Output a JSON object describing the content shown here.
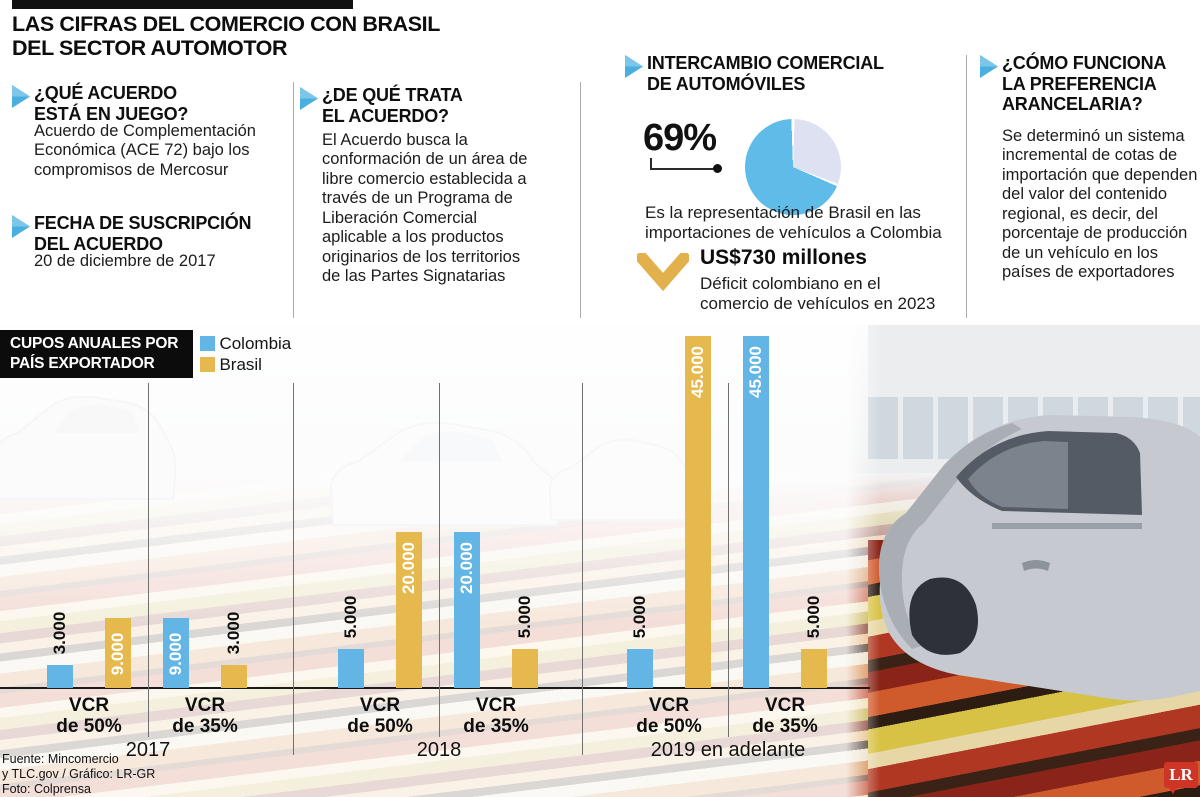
{
  "masthead": {
    "title": "LAS CIFRAS DEL COMERCIO CON BRASIL\nDEL SECTOR AUTOMOTOR"
  },
  "columns": {
    "col1": {
      "q1_heading": "¿QUÉ ACUERDO\nESTÁ EN JUEGO?",
      "q1_body": "Acuerdo de Complementación Económica (ACE 72) bajo los compromisos de Mercosur",
      "q2_heading": "FECHA DE SUSCRIPCIÓN\nDEL ACUERDO",
      "q2_body": "20 de diciembre de 2017"
    },
    "col2": {
      "heading": "¿DE QUÉ TRATA\nEL ACUERDO?",
      "body": "El Acuerdo busca la conformación de un área de libre comercio establecida a través de un Programa de Liberación Comercial aplicable a los productos originarios de los territorios de las Partes Signatarias"
    },
    "col3": {
      "heading": "INTERCAMBIO COMERCIAL\nDE AUTOMÓVILES",
      "pie_value": "69%",
      "pie_caption": "Es la representación de Brasil en las importaciones de vehículos a Colombia",
      "deficit_value": "US$730 millones",
      "deficit_caption": "Déficit colombiano en el comercio de vehículos en 2023"
    },
    "col4": {
      "heading": "¿CÓMO FUNCIONA\nLA PREFERENCIA\nARANCELARIA?",
      "body": "Se determinó un sistema incremental de cotas de importación que dependen del valor del contenido regional, es decir, del porcentaje de producción de un vehículo en los países de exportadores"
    }
  },
  "chart": {
    "header": "CUPOS ANUALES POR\nPAÍS EXPORTADOR",
    "legend": [
      {
        "label": "Colombia",
        "color": "#62b5e5"
      },
      {
        "label": "Brasil",
        "color": "#e5b94e"
      }
    ]
  },
  "chart_data": [
    {
      "type": "bar",
      "title": "Cupos anuales por país exportador",
      "series_names": [
        "Colombia",
        "Brasil"
      ],
      "ylim": [
        0,
        45000
      ],
      "legend_position": "top-left",
      "grid": false,
      "groups": [
        {
          "year": "2017",
          "bars": [
            {
              "series": "Colombia",
              "category": "VCR de 50%",
              "value": 3000,
              "label": "3.000"
            },
            {
              "series": "Brasil",
              "category": "VCR de 50%",
              "value": 9000,
              "label": "9.000"
            },
            {
              "series": "Colombia",
              "category": "VCR de 35%",
              "value": 9000,
              "label": "9.000"
            },
            {
              "series": "Brasil",
              "category": "VCR de 35%",
              "value": 3000,
              "label": "3.000"
            }
          ]
        },
        {
          "year": "2018",
          "bars": [
            {
              "series": "Colombia",
              "category": "VCR de 50%",
              "value": 5000,
              "label": "5.000"
            },
            {
              "series": "Brasil",
              "category": "VCR de 50%",
              "value": 20000,
              "label": "20.000"
            },
            {
              "series": "Colombia",
              "category": "VCR de 35%",
              "value": 20000,
              "label": "20.000"
            },
            {
              "series": "Brasil",
              "category": "VCR de 35%",
              "value": 5000,
              "label": "5.000"
            }
          ]
        },
        {
          "year": "2019 en adelante",
          "bars": [
            {
              "series": "Colombia",
              "category": "VCR de 50%",
              "value": 5000,
              "label": "5.000"
            },
            {
              "series": "Brasil",
              "category": "VCR de 50%",
              "value": 45000,
              "label": "45.000"
            },
            {
              "series": "Colombia",
              "category": "VCR de 35%",
              "value": 45000,
              "label": "45.000"
            },
            {
              "series": "Brasil",
              "category": "VCR de 35%",
              "value": 5000,
              "label": "5.000"
            }
          ]
        }
      ]
    },
    {
      "type": "pie",
      "label": "69%",
      "slices": [
        {
          "name": "Brasil",
          "value": 69
        },
        {
          "name": "Otros",
          "value": 31
        }
      ],
      "caption": "Es la representación de Brasil en las importaciones de vehículos a Colombia"
    }
  ],
  "footer": {
    "source": "Fuente: Mincomercio\ny TLC.gov / Gráfico: LR-GR\nFoto: Colprensa",
    "logo": "LR"
  },
  "colors": {
    "colombia_blue": "#62b5e5",
    "brasil_gold": "#e5b94e",
    "pie_blue": "#5fbbe7",
    "pie_rest": "#dde1f2",
    "arrow_blue": "#4aaede",
    "chevron_gold": "#e2b14c",
    "logo_red": "#cf3526",
    "header_box_black": "#0c0c0c"
  }
}
